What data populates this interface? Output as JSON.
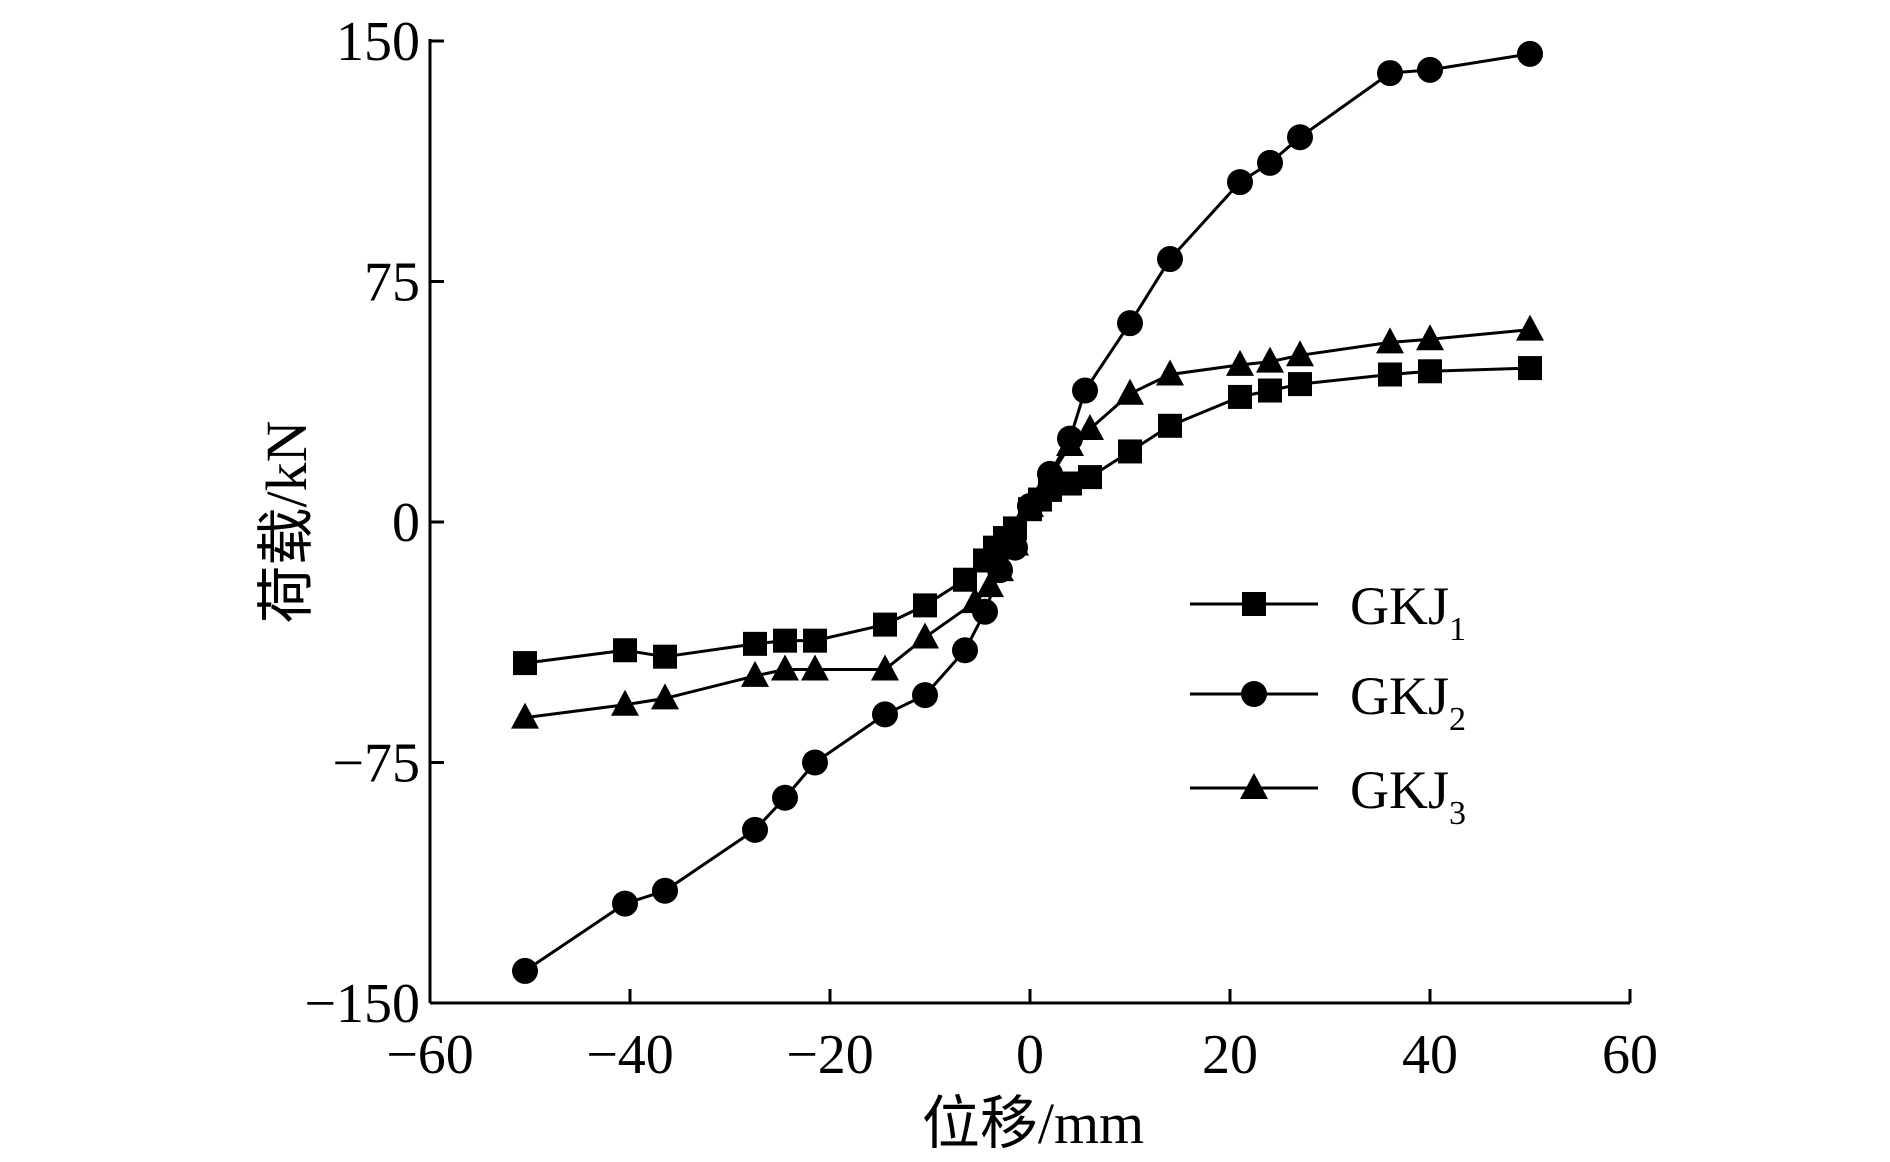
{
  "chart_data": {
    "type": "line",
    "title": "",
    "xlabel": "位移/mm",
    "ylabel": "荷载/kN",
    "xlim": [
      -60,
      60
    ],
    "ylim": [
      -150,
      150
    ],
    "xticks": [
      -60,
      -40,
      -20,
      0,
      20,
      40,
      60
    ],
    "yticks": [
      -150,
      -75,
      0,
      75,
      150
    ],
    "xtick_labels": [
      "−60",
      "−40",
      "−20",
      "0",
      "20",
      "40",
      "60"
    ],
    "ytick_labels": [
      "−150",
      "−75",
      "0",
      "75",
      "150"
    ],
    "grid": false,
    "legend_position": "right",
    "series": [
      {
        "name": "GKJ1",
        "label_main": "GKJ",
        "label_sub": "1",
        "marker": "square",
        "x": [
          -50.5,
          -40.5,
          -36.5,
          -27.5,
          -24.5,
          -21.5,
          -14.5,
          -10.5,
          -6.5,
          -4.5,
          -3.5,
          -2.5,
          -1.5,
          0,
          1,
          2,
          4,
          6,
          10,
          14,
          21,
          24,
          27,
          36,
          40,
          50
        ],
        "y": [
          -44,
          -40,
          -42,
          -38,
          -37,
          -37,
          -32,
          -26,
          -18,
          -12,
          -8,
          -5,
          -2,
          4,
          7,
          10,
          12,
          14,
          22,
          30,
          39,
          41,
          43,
          46,
          47,
          48
        ]
      },
      {
        "name": "GKJ2",
        "label_main": "GKJ",
        "label_sub": "2",
        "marker": "circle",
        "x": [
          -50.5,
          -40.5,
          -36.5,
          -27.5,
          -24.5,
          -21.5,
          -14.5,
          -10.5,
          -6.5,
          -4.5,
          -3,
          -1.5,
          0,
          2,
          4,
          5.5,
          10,
          14,
          21,
          24,
          27,
          36,
          40,
          50
        ],
        "y": [
          -140,
          -119,
          -115,
          -96,
          -86,
          -75,
          -60,
          -54,
          -40,
          -28,
          -15,
          -8,
          5,
          15,
          26,
          41,
          62,
          82,
          106,
          112,
          120,
          140,
          141,
          146
        ]
      },
      {
        "name": "GKJ3",
        "label_main": "GKJ",
        "label_sub": "3",
        "marker": "triangle",
        "x": [
          -50.5,
          -40.5,
          -36.5,
          -27.5,
          -24.5,
          -21.5,
          -14.5,
          -10.5,
          -5.5,
          -4,
          -3,
          -1.5,
          0,
          2,
          4,
          6,
          10,
          14,
          21,
          24,
          27,
          36,
          40,
          50
        ],
        "y": [
          -61,
          -57,
          -55,
          -48,
          -46,
          -46,
          -46,
          -36,
          -25,
          -20,
          -15,
          -7,
          5,
          14,
          24,
          29,
          40,
          46,
          49,
          50,
          52,
          56,
          57,
          60
        ]
      }
    ]
  }
}
